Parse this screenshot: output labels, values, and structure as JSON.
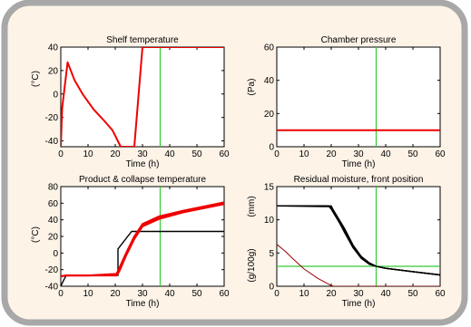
{
  "panel": {
    "border_color": "#a8a8a8",
    "background": "#fdf3e7"
  },
  "colors": {
    "red": "#ee0000",
    "green": "#33cc33",
    "black": "#000000",
    "dark_red": "#990000"
  },
  "chart_data": [
    {
      "type": "line",
      "title": "Shelf temperature",
      "xlabel": "Time (h)",
      "ylabel": "(°C)",
      "xlim": [
        0,
        60
      ],
      "ylim": [
        -45,
        40
      ],
      "xticks": [
        0,
        10,
        20,
        30,
        40,
        50,
        60
      ],
      "yticks": [
        -40,
        -20,
        0,
        20,
        40
      ],
      "vline": 36.5,
      "series": [
        {
          "color": "red",
          "x": [
            0,
            0.5,
            2.5,
            5,
            8,
            12,
            16,
            19,
            20.5,
            22,
            27,
            30,
            31,
            40,
            60
          ],
          "y": [
            -45,
            -12,
            27,
            12,
            0,
            -13,
            -23,
            -31,
            -38,
            -45,
            -45,
            40,
            40,
            40,
            40
          ]
        }
      ]
    },
    {
      "type": "line",
      "title": "Chamber pressure",
      "xlabel": "Time (h)",
      "ylabel": "(Pa)",
      "xlim": [
        0,
        60
      ],
      "ylim": [
        0,
        60
      ],
      "xticks": [
        0,
        10,
        20,
        30,
        40,
        50,
        60
      ],
      "yticks": [
        0,
        20,
        40,
        60
      ],
      "vline": 36.5,
      "series": [
        {
          "color": "red",
          "x": [
            0,
            60
          ],
          "y": [
            10,
            10
          ]
        }
      ]
    },
    {
      "type": "line",
      "title": "Product & collapse temperature",
      "xlabel": "Time (h)",
      "ylabel": "(°C)",
      "xlim": [
        0,
        60
      ],
      "ylim": [
        -40,
        80
      ],
      "xticks": [
        0,
        10,
        20,
        30,
        40,
        50,
        60
      ],
      "yticks": [
        -40,
        -20,
        0,
        20,
        40,
        60,
        80
      ],
      "vline": 36.5,
      "series": [
        {
          "color": "black",
          "x": [
            0,
            1,
            2,
            20.5,
            21,
            21,
            26,
            60
          ],
          "y": [
            -40,
            -33,
            -27,
            -27,
            -27,
            5,
            26,
            26
          ]
        },
        {
          "color": "red",
          "x": [
            0,
            2,
            10,
            20.5,
            21.5,
            24,
            27,
            30,
            36,
            45,
            60
          ],
          "y": [
            -28,
            -27,
            -27,
            -25,
            -18,
            0,
            20,
            35,
            44,
            51,
            61
          ]
        },
        {
          "color": "red",
          "x": [
            0,
            2,
            10,
            20.5,
            21.5,
            24,
            27,
            30,
            36,
            45,
            60
          ],
          "y": [
            -28,
            -27,
            -27,
            -27,
            -22,
            -3,
            17,
            32,
            41,
            49,
            59
          ]
        },
        {
          "color": "red",
          "x": [
            0,
            2,
            10,
            20.5,
            21.5,
            24,
            27,
            30,
            36,
            45,
            60
          ],
          "y": [
            -28,
            -27,
            -27,
            -26,
            -20,
            -1,
            19,
            34,
            43,
            50,
            60
          ]
        }
      ]
    },
    {
      "type": "line",
      "title": "Residual moisture, front position",
      "xlabel": "Time (h)",
      "ylabel": "(mm)",
      "ylabel2": "(g/100g)",
      "xlim": [
        0,
        60
      ],
      "ylim": [
        0,
        15
      ],
      "xticks": [
        0,
        10,
        20,
        30,
        40,
        50,
        60
      ],
      "yticks": [
        0,
        5,
        10,
        15
      ],
      "vline": 36.5,
      "hline": 3,
      "series": [
        {
          "color": "black",
          "x": [
            0,
            20,
            21,
            25,
            28,
            31,
            34,
            36.5,
            40,
            50,
            60
          ],
          "y": [
            12.1,
            12.1,
            11.2,
            8.0,
            5.8,
            4.2,
            3.3,
            3.0,
            2.7,
            2.2,
            1.7
          ]
        },
        {
          "color": "black",
          "x": [
            0,
            19,
            20,
            25,
            28,
            31,
            34,
            36.5,
            40,
            50,
            60
          ],
          "y": [
            12.1,
            12.1,
            11.6,
            8.2,
            6.0,
            4.3,
            3.4,
            3.0,
            2.7,
            2.2,
            1.7
          ]
        },
        {
          "color": "black",
          "x": [
            0,
            18,
            20,
            25,
            28,
            31,
            34,
            36.5,
            40,
            50,
            60
          ],
          "y": [
            12.1,
            12.1,
            11.9,
            8.4,
            6.1,
            4.4,
            3.5,
            3.0,
            2.7,
            2.2,
            1.7
          ]
        },
        {
          "color": "black",
          "x": [
            0,
            17,
            20,
            25,
            28,
            31,
            34,
            36.5,
            40,
            50,
            60
          ],
          "y": [
            12.1,
            12.0,
            12.0,
            8.6,
            6.2,
            4.5,
            3.5,
            3.0,
            2.7,
            2.2,
            1.7
          ]
        },
        {
          "color": "dark_red",
          "x": [
            0,
            3,
            6,
            10,
            15,
            20,
            21,
            60
          ],
          "y": [
            6.3,
            5.3,
            4.1,
            2.6,
            1.2,
            0.1,
            0,
            0
          ]
        }
      ]
    }
  ]
}
